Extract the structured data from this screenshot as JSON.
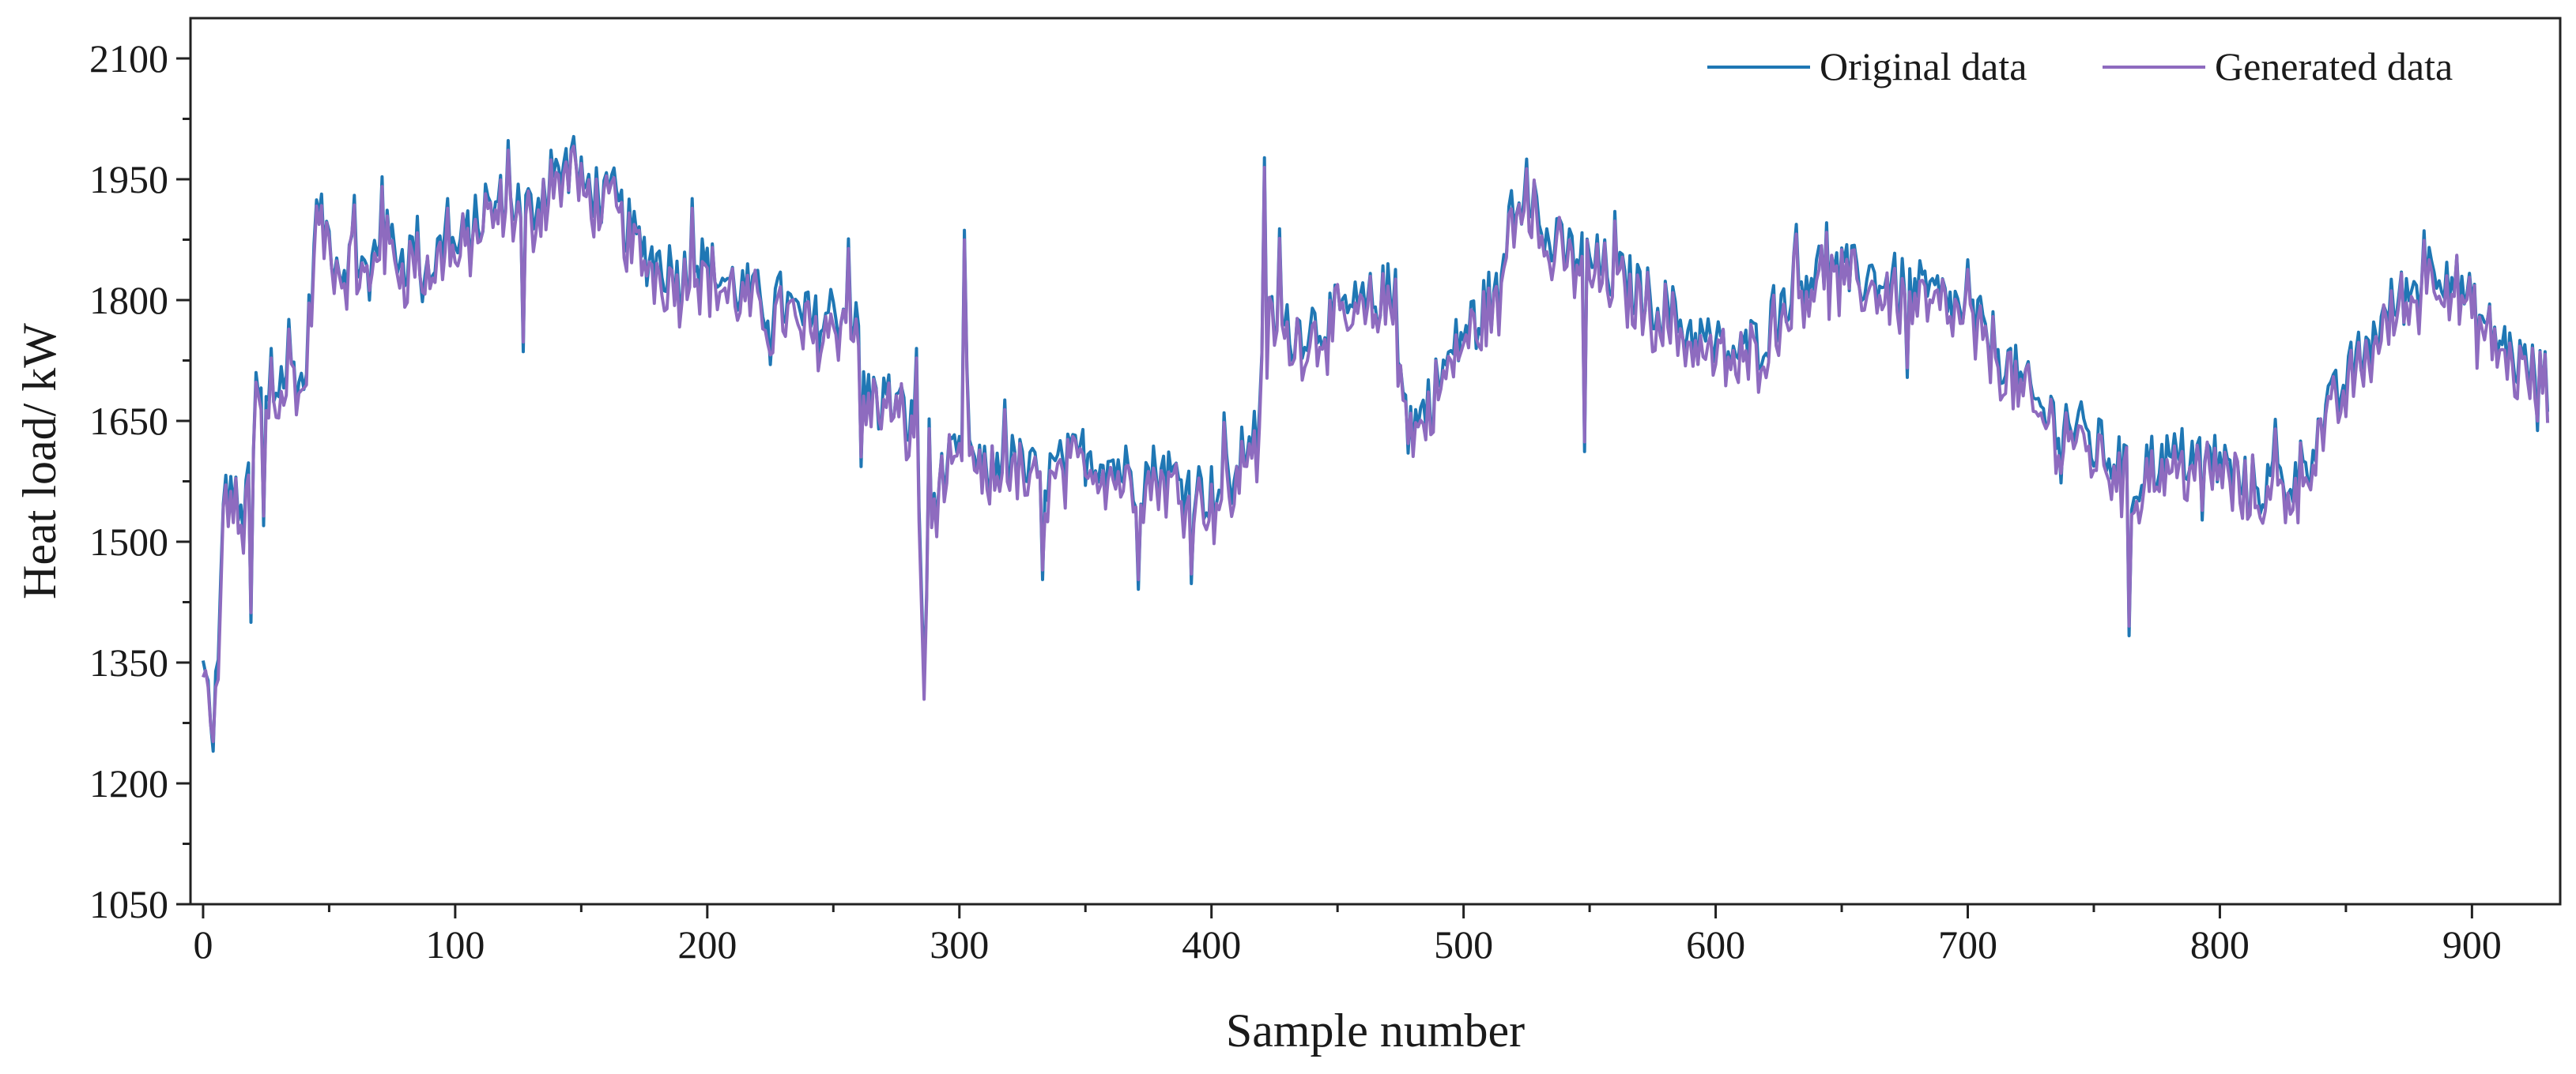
{
  "chart_data": {
    "type": "line",
    "title": "",
    "xlabel": "Sample number",
    "ylabel": "Heat load/ kW",
    "xlim": [
      -5,
      935
    ],
    "ylim": [
      1050,
      2150
    ],
    "xticks": [
      0,
      100,
      200,
      300,
      400,
      500,
      600,
      700,
      800,
      900
    ],
    "yticks": [
      1050,
      1200,
      1350,
      1500,
      1650,
      1800,
      1950,
      2100
    ],
    "grid": false,
    "legend_position": "top-right",
    "colors": {
      "original": "#1f77b4",
      "generated": "#8e6bbf"
    },
    "anchors": [
      [
        0,
        1340
      ],
      [
        3,
        1300
      ],
      [
        6,
        1330
      ],
      [
        8,
        1570
      ],
      [
        12,
        1560
      ],
      [
        15,
        1520
      ],
      [
        18,
        1560
      ],
      [
        22,
        1680
      ],
      [
        26,
        1660
      ],
      [
        30,
        1700
      ],
      [
        35,
        1720
      ],
      [
        40,
        1690
      ],
      [
        45,
        1900
      ],
      [
        50,
        1880
      ],
      [
        55,
        1840
      ],
      [
        60,
        1860
      ],
      [
        65,
        1830
      ],
      [
        70,
        1880
      ],
      [
        75,
        1870
      ],
      [
        80,
        1850
      ],
      [
        85,
        1870
      ],
      [
        90,
        1840
      ],
      [
        95,
        1870
      ],
      [
        100,
        1860
      ],
      [
        105,
        1880
      ],
      [
        110,
        1900
      ],
      [
        115,
        1910
      ],
      [
        120,
        1930
      ],
      [
        125,
        1920
      ],
      [
        130,
        1910
      ],
      [
        135,
        1940
      ],
      [
        140,
        1950
      ],
      [
        145,
        1970
      ],
      [
        150,
        1940
      ],
      [
        155,
        1940
      ],
      [
        160,
        1920
      ],
      [
        165,
        1910
      ],
      [
        170,
        1880
      ],
      [
        175,
        1860
      ],
      [
        180,
        1850
      ],
      [
        185,
        1840
      ],
      [
        190,
        1830
      ],
      [
        195,
        1850
      ],
      [
        200,
        1840
      ],
      [
        205,
        1830
      ],
      [
        210,
        1820
      ],
      [
        215,
        1810
      ],
      [
        220,
        1800
      ],
      [
        225,
        1790
      ],
      [
        230,
        1800
      ],
      [
        235,
        1780
      ],
      [
        240,
        1770
      ],
      [
        245,
        1770
      ],
      [
        250,
        1790
      ],
      [
        255,
        1780
      ],
      [
        260,
        1760
      ],
      [
        263,
        1680
      ],
      [
        270,
        1680
      ],
      [
        275,
        1670
      ],
      [
        280,
        1650
      ],
      [
        283,
        1630
      ],
      [
        286,
        1345
      ],
      [
        290,
        1560
      ],
      [
        295,
        1590
      ],
      [
        300,
        1600
      ],
      [
        303,
        1700
      ],
      [
        305,
        1600
      ],
      [
        310,
        1580
      ],
      [
        320,
        1600
      ],
      [
        330,
        1580
      ],
      [
        340,
        1590
      ],
      [
        350,
        1610
      ],
      [
        360,
        1600
      ],
      [
        370,
        1580
      ],
      [
        380,
        1590
      ],
      [
        390,
        1570
      ],
      [
        400,
        1560
      ],
      [
        410,
        1580
      ],
      [
        415,
        1640
      ],
      [
        418,
        1630
      ],
      [
        420,
        1700
      ],
      [
        423,
        1780
      ],
      [
        430,
        1760
      ],
      [
        440,
        1770
      ],
      [
        450,
        1780
      ],
      [
        460,
        1790
      ],
      [
        470,
        1810
      ],
      [
        475,
        1740
      ],
      [
        478,
        1650
      ],
      [
        482,
        1650
      ],
      [
        490,
        1700
      ],
      [
        500,
        1760
      ],
      [
        510,
        1800
      ],
      [
        515,
        1800
      ],
      [
        518,
        1920
      ],
      [
        522,
        1930
      ],
      [
        528,
        1940
      ],
      [
        530,
        1880
      ],
      [
        540,
        1860
      ],
      [
        550,
        1850
      ],
      [
        560,
        1830
      ],
      [
        570,
        1810
      ],
      [
        580,
        1790
      ],
      [
        590,
        1760
      ],
      [
        600,
        1740
      ],
      [
        610,
        1730
      ],
      [
        620,
        1760
      ],
      [
        630,
        1820
      ],
      [
        640,
        1840
      ],
      [
        650,
        1830
      ],
      [
        660,
        1830
      ],
      [
        670,
        1820
      ],
      [
        680,
        1810
      ],
      [
        690,
        1800
      ],
      [
        700,
        1780
      ],
      [
        710,
        1750
      ],
      [
        720,
        1700
      ],
      [
        730,
        1660
      ],
      [
        740,
        1650
      ],
      [
        750,
        1620
      ],
      [
        760,
        1600
      ],
      [
        766,
        1560
      ],
      [
        770,
        1600
      ],
      [
        780,
        1600
      ],
      [
        790,
        1610
      ],
      [
        800,
        1600
      ],
      [
        810,
        1570
      ],
      [
        820,
        1570
      ],
      [
        830,
        1580
      ],
      [
        840,
        1640
      ],
      [
        850,
        1700
      ],
      [
        860,
        1750
      ],
      [
        870,
        1800
      ],
      [
        880,
        1820
      ],
      [
        885,
        1850
      ],
      [
        890,
        1840
      ],
      [
        900,
        1790
      ],
      [
        910,
        1750
      ],
      [
        920,
        1720
      ],
      [
        930,
        1700
      ]
    ],
    "spikes": [
      [
        4,
        -70
      ],
      [
        9,
        15
      ],
      [
        17,
        30
      ],
      [
        19,
        -190
      ],
      [
        21,
        60
      ],
      [
        24,
        -150
      ],
      [
        27,
        70
      ],
      [
        34,
        60
      ],
      [
        46,
        10
      ],
      [
        60,
        70
      ],
      [
        66,
        -40
      ],
      [
        71,
        75
      ],
      [
        87,
        -60
      ],
      [
        97,
        60
      ],
      [
        112,
        40
      ],
      [
        121,
        70
      ],
      [
        127,
        -180
      ],
      [
        138,
        40
      ],
      [
        147,
        45
      ],
      [
        163,
        50
      ],
      [
        176,
        -40
      ],
      [
        194,
        80
      ],
      [
        225,
        -70
      ],
      [
        240,
        40
      ],
      [
        256,
        100
      ],
      [
        261,
        -140
      ],
      [
        268,
        -40
      ],
      [
        283,
        110
      ],
      [
        288,
        200
      ],
      [
        302,
        220
      ],
      [
        318,
        80
      ],
      [
        333,
        -130
      ],
      [
        350,
        -40
      ],
      [
        371,
        -140
      ],
      [
        392,
        -120
      ],
      [
        405,
        90
      ],
      [
        421,
        250
      ],
      [
        427,
        120
      ],
      [
        473,
        70
      ],
      [
        478,
        -40
      ],
      [
        505,
        -40
      ],
      [
        525,
        40
      ],
      [
        548,
        -240
      ],
      [
        560,
        80
      ],
      [
        623,
        40
      ],
      [
        632,
        70
      ],
      [
        644,
        60
      ],
      [
        676,
        -110
      ],
      [
        700,
        70
      ],
      [
        737,
        -80
      ],
      [
        764,
        -190
      ],
      [
        793,
        -80
      ],
      [
        822,
        80
      ],
      [
        881,
        60
      ],
      [
        926,
        -70
      ]
    ]
  },
  "legend": [
    {
      "label": "Original data",
      "color": "#1f77b4"
    },
    {
      "label": "Generated data",
      "color": "#8e6bbf"
    }
  ]
}
